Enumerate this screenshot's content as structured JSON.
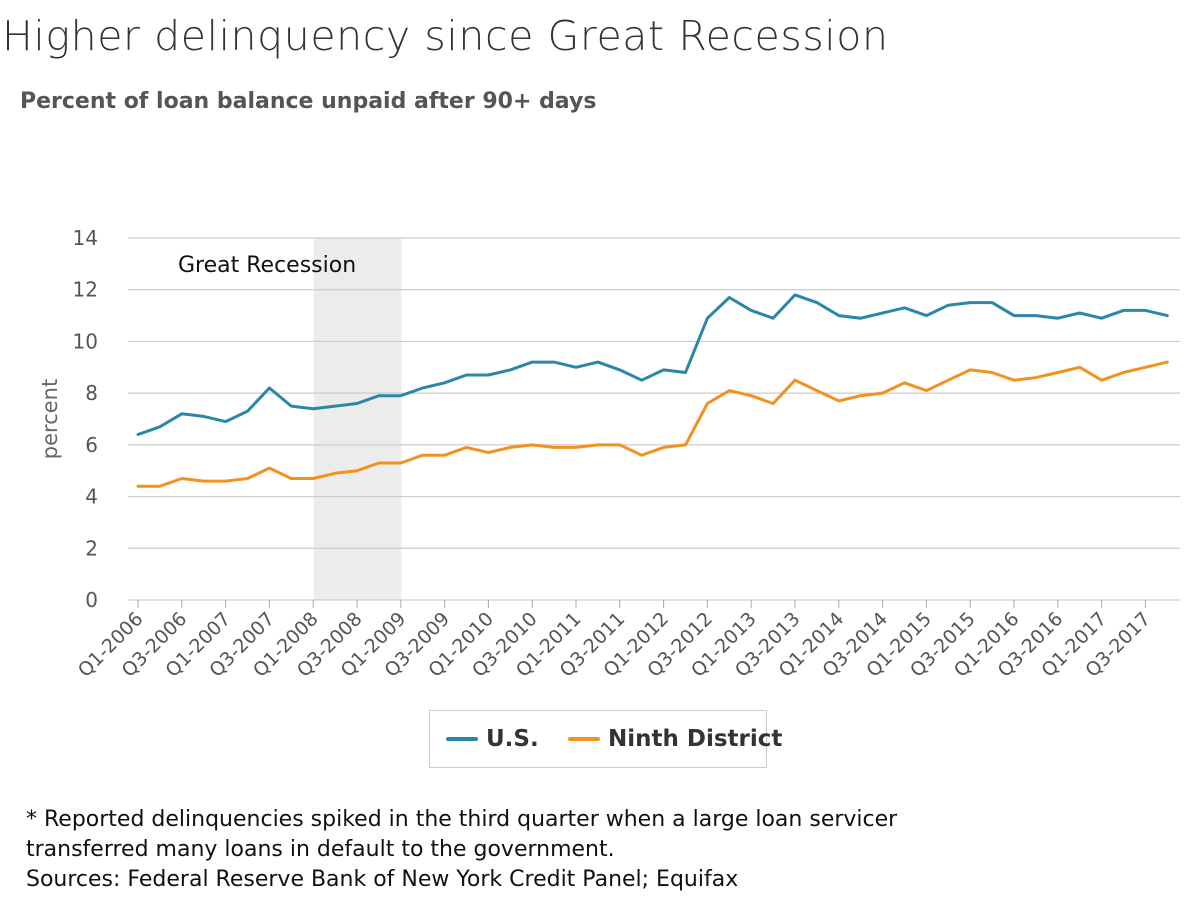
{
  "title": "Higher delinquency since Great Recession",
  "subtitle": "Percent of loan balance unpaid after 90+ days",
  "footnotes": [
    "* Reported delinquencies spiked in the third quarter when a large loan servicer",
    "transferred many loans in default to the government.",
    "Sources: Federal Reserve Bank of New York Credit Panel; Equifax"
  ],
  "colors": {
    "us": "#2b87a8",
    "ninth": "#f2921e",
    "recession": "#ececec",
    "grid": "#cccccc",
    "axis_text": "#555555"
  },
  "chart_data": {
    "type": "line",
    "ylabel": "percent",
    "xlabel": "",
    "ylim": [
      0,
      14
    ],
    "yticks": [
      0,
      2,
      4,
      6,
      8,
      10,
      12,
      14
    ],
    "grid": true,
    "legend_position": "bottom",
    "x": [
      "Q1-2006",
      "Q2-2006",
      "Q3-2006",
      "Q4-2006",
      "Q1-2007",
      "Q2-2007",
      "Q3-2007",
      "Q4-2007",
      "Q1-2008",
      "Q2-2008",
      "Q3-2008",
      "Q4-2008",
      "Q1-2009",
      "Q2-2009",
      "Q3-2009",
      "Q4-2009",
      "Q1-2010",
      "Q2-2010",
      "Q3-2010",
      "Q4-2010",
      "Q1-2011",
      "Q2-2011",
      "Q3-2011",
      "Q4-2011",
      "Q1-2012",
      "Q2-2012",
      "Q3-2012",
      "Q4-2012",
      "Q1-2013",
      "Q2-2013",
      "Q3-2013",
      "Q4-2013",
      "Q1-2014",
      "Q2-2014",
      "Q3-2014",
      "Q4-2014",
      "Q1-2015",
      "Q2-2015",
      "Q3-2015",
      "Q4-2015",
      "Q1-2016",
      "Q2-2016",
      "Q3-2016",
      "Q4-2016",
      "Q1-2017",
      "Q2-2017",
      "Q3-2017",
      "Q4-2017"
    ],
    "x_tick_labels": [
      "Q1-2006",
      "Q3-2006",
      "Q1-2007",
      "Q3-2007",
      "Q1-2008",
      "Q3-2008",
      "Q1-2009",
      "Q3-2009",
      "Q1-2010",
      "Q3-2010",
      "Q1-2011",
      "Q3-2011",
      "Q1-2012",
      "Q3-2012",
      "Q1-2013",
      "Q3-2013",
      "Q1-2014",
      "Q3-2014",
      "Q1-2015",
      "Q3-2015",
      "Q1-2016",
      "Q3-2016",
      "Q1-2017",
      "Q3-2017"
    ],
    "annotations": [
      {
        "type": "shaded_band",
        "label": "Great Recession",
        "from": "Q1-2008",
        "to": "Q1-2009"
      }
    ],
    "series": [
      {
        "name": "U.S.",
        "values": [
          6.4,
          6.7,
          7.2,
          7.1,
          6.9,
          7.3,
          8.2,
          7.5,
          7.4,
          7.5,
          7.6,
          7.9,
          7.9,
          8.2,
          8.4,
          8.7,
          8.7,
          8.9,
          9.2,
          9.2,
          9.0,
          9.2,
          8.9,
          8.5,
          8.9,
          8.8,
          10.9,
          11.7,
          11.2,
          10.9,
          11.8,
          11.5,
          11.0,
          10.9,
          11.1,
          11.3,
          11.0,
          11.4,
          11.5,
          11.5,
          11.0,
          11.0,
          10.9,
          11.1,
          10.9,
          11.2,
          11.2,
          11.0
        ]
      },
      {
        "name": "Ninth District",
        "values": [
          4.4,
          4.4,
          4.7,
          4.6,
          4.6,
          4.7,
          5.1,
          4.7,
          4.7,
          4.9,
          5.0,
          5.3,
          5.3,
          5.6,
          5.6,
          5.9,
          5.7,
          5.9,
          6.0,
          5.9,
          5.9,
          6.0,
          6.0,
          5.6,
          5.9,
          6.0,
          7.6,
          8.1,
          7.9,
          7.6,
          8.5,
          8.1,
          7.7,
          7.9,
          8.0,
          8.4,
          8.1,
          8.5,
          8.9,
          8.8,
          8.5,
          8.6,
          8.8,
          9.0,
          8.5,
          8.8,
          9.0,
          9.2
        ]
      }
    ]
  }
}
